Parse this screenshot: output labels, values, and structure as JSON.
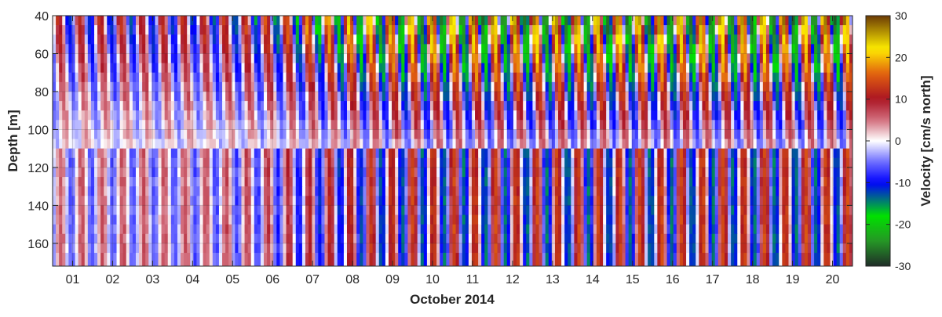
{
  "chart_data": {
    "type": "heatmap",
    "title": "",
    "xlabel": "October 2014",
    "ylabel": "Depth [m]",
    "x_ticks": [
      "01",
      "02",
      "03",
      "04",
      "05",
      "06",
      "07",
      "08",
      "09",
      "10",
      "11",
      "12",
      "13",
      "14",
      "15",
      "16",
      "17",
      "18",
      "19",
      "20"
    ],
    "x_range_days": [
      0.5,
      20.5
    ],
    "y_ticks": [
      40,
      60,
      80,
      100,
      120,
      140,
      160
    ],
    "ylim": [
      40,
      172
    ],
    "y_reversed": true,
    "colorbar": {
      "label": "Velocity [cm/s north]",
      "ticks": [
        30,
        20,
        10,
        0,
        -10,
        -20,
        -30
      ],
      "range": [
        -30,
        30
      ],
      "colors": [
        "#1f2d28",
        "#25b025",
        "#00e000",
        "#0000ff",
        "#7070ff",
        "#ffffff",
        "#d07080",
        "#b01020",
        "#e06010",
        "#ffee00",
        "#6b3a05"
      ]
    },
    "grid": true,
    "data_description": {
      "dominant_period_hours": 12.42,
      "upper_layer": {
        "depth": [
          40,
          110
        ],
        "amplitude_cm_s": [
          5,
          28
        ]
      },
      "lower_layer": {
        "depth": [
          110,
          172
        ],
        "amplitude_cm_s": [
          3,
          14
        ]
      },
      "amplitude_increases_after_day": 7
    }
  }
}
